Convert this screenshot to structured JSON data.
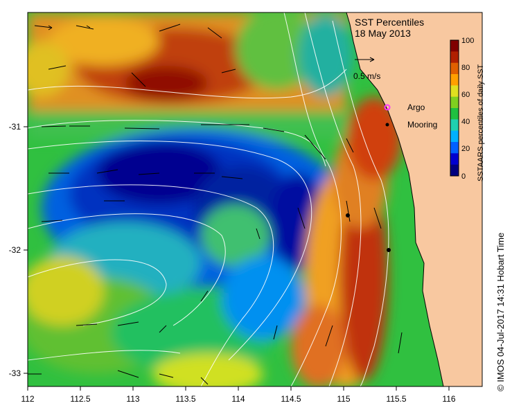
{
  "title": "SST Percentiles",
  "date": "18 May 2013",
  "scale_label": "0.5 m/s",
  "legend": {
    "argo_label": "Argo",
    "mooring_label": "Mooring",
    "argo_color": "#ff33ff",
    "mooring_color": "#000000"
  },
  "colorbar": {
    "label": "SSTAARS percentiles of daily SST",
    "ticks": [
      "100",
      "80",
      "60",
      "40",
      "20",
      "0"
    ],
    "colors": [
      "#00007f",
      "#0000d0",
      "#0060ff",
      "#00b0ff",
      "#20d0b0",
      "#20c040",
      "#80d020",
      "#e0e020",
      "#ffa000",
      "#e06000",
      "#b02000",
      "#800000"
    ]
  },
  "x_ticks": [
    "112",
    "112.5",
    "113",
    "113.5",
    "114",
    "114.5",
    "115",
    "115.5",
    "116"
  ],
  "y_ticks": [
    "-31",
    "-32",
    "-33"
  ],
  "credit": "© IMOS 04-Jul-2017 14:31 Hobart Time",
  "land_color": "#f8c8a0"
}
